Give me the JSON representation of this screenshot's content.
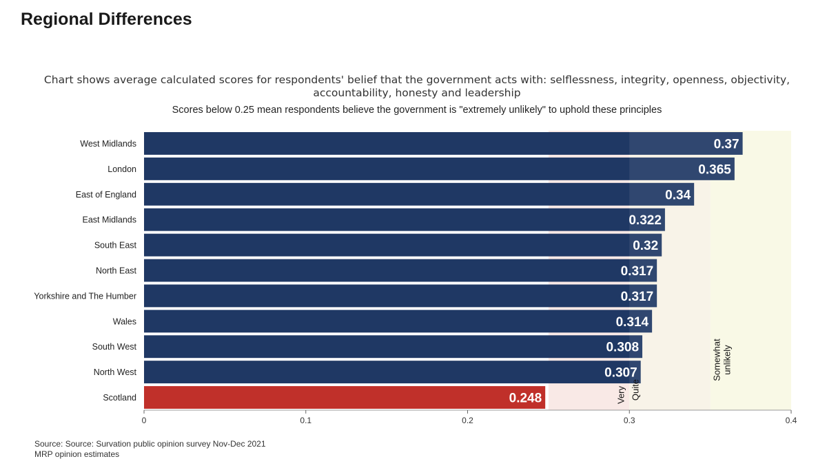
{
  "heading": "Regional Differences",
  "subtitle": "Chart shows average calculated scores for respondents' belief that the government acts with: selflessness, integrity, openness, objectivity, accountability, honesty and leadership",
  "note": "Scores below 0.25 mean respondents believe the government is \"extremely unlikely\" to uphold these principles",
  "source_line1": "Source: Source: Survation public opinion survey Nov-Dec 2021",
  "source_line2": "MRP opinion estimates",
  "chart_data": {
    "type": "bar",
    "orientation": "horizontal",
    "categories": [
      "West Midlands",
      "London",
      "East of England",
      "East Midlands",
      "South East",
      "North East",
      "Yorkshire and The Humber",
      "Wales",
      "South West",
      "North West",
      "Scotland"
    ],
    "values": [
      0.37,
      0.365,
      0.34,
      0.322,
      0.32,
      0.317,
      0.317,
      0.314,
      0.308,
      0.307,
      0.248
    ],
    "value_labels": [
      "0.37",
      "0.365",
      "0.34",
      "0.322",
      "0.32",
      "0.317",
      "0.317",
      "0.314",
      "0.308",
      "0.307",
      "0.248"
    ],
    "bar_colors": [
      "#1f3864",
      "#1f3864",
      "#1f3864",
      "#1f3864",
      "#1f3864",
      "#1f3864",
      "#1f3864",
      "#1f3864",
      "#1f3864",
      "#1f3864",
      "#c0302a"
    ],
    "xlim": [
      0,
      0.4
    ],
    "xticks": [
      0,
      0.1,
      0.2,
      0.3,
      0.4
    ],
    "xtick_labels": [
      "0",
      "0.1",
      "0.2",
      "0.3",
      "0.4"
    ],
    "bands": [
      {
        "from": 0.25,
        "to": 0.3,
        "label": "Very",
        "color": "#f9e9e6"
      },
      {
        "from": 0.3,
        "to": 0.35,
        "label": "Quite",
        "color": "#f8f3e8"
      },
      {
        "from": 0.35,
        "to": 0.4,
        "label": "Somewhat unlikely",
        "color": "#f9f9e6"
      }
    ],
    "grid": false
  }
}
